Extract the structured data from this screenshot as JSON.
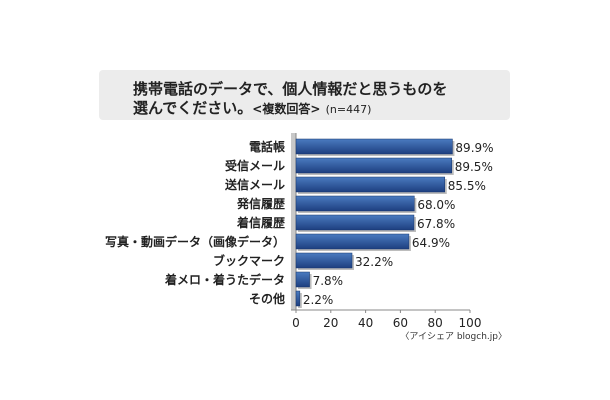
{
  "title": {
    "line1": "携帯電話のデータで、個人情報だと思うものを",
    "line2": "選んでください。",
    "subtitle": "<複数回答>",
    "sample": "(n=447)"
  },
  "source": "〈アイシェア blogch.jp〉",
  "colors": {
    "bar_top": "#4a7bc0",
    "bar_bottom": "#1d3f80",
    "background_panel": "#ececec"
  },
  "chart_data": {
    "type": "bar",
    "orientation": "horizontal",
    "title": "携帯電話のデータで、個人情報だと思うものを選んでください。<複数回答> (n=447)",
    "categories": [
      "電話帳",
      "受信メール",
      "送信メール",
      "発信履歴",
      "着信履歴",
      "写真・動画データ（画像データ）",
      "ブックマーク",
      "着メロ・着うたデータ",
      "その他"
    ],
    "values": [
      89.9,
      89.5,
      85.5,
      68.0,
      67.8,
      64.9,
      32.2,
      7.8,
      2.2
    ],
    "value_labels": [
      "89.9%",
      "89.5%",
      "85.5%",
      "68.0%",
      "67.8%",
      "64.9%",
      "32.2%",
      "7.8%",
      "2.2%"
    ],
    "xlim": [
      0,
      100
    ],
    "xticks": [
      "0",
      "20",
      "40",
      "60",
      "80",
      "100"
    ],
    "grid": false,
    "legend": "none"
  }
}
